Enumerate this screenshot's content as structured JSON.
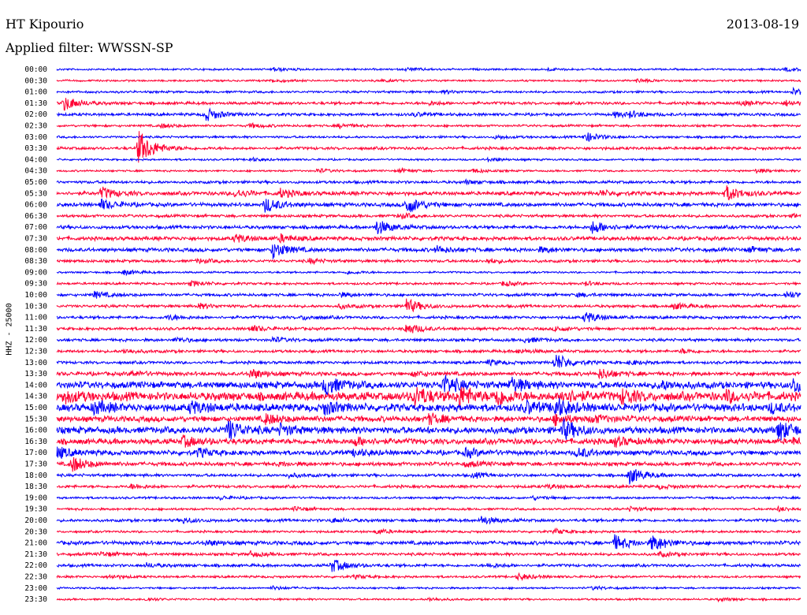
{
  "header": {
    "station": "HT Kipourio",
    "date": "2013-08-19",
    "filter": "Applied filter: WWSSN-SP"
  },
  "chart_data": {
    "type": "line",
    "title": "HT Kipourio",
    "ylabel": "HHZ - 25000",
    "colors": [
      "#0000ff",
      "#ff0033"
    ],
    "lines": [
      {
        "time": "00:00",
        "noise": 1.0,
        "events": [
          [
            0.29,
            2.5
          ],
          [
            0.47,
            2.0
          ],
          [
            0.66,
            1.5
          ],
          [
            0.98,
            2.0
          ]
        ]
      },
      {
        "time": "00:30",
        "noise": 1.0,
        "events": [
          [
            0.29,
            2.0
          ],
          [
            0.43,
            1.8
          ],
          [
            0.78,
            2.2
          ]
        ]
      },
      {
        "time": "01:00",
        "noise": 1.2,
        "events": [
          [
            0.52,
            1.8
          ],
          [
            0.99,
            4.0
          ]
        ]
      },
      {
        "time": "01:30",
        "noise": 1.5,
        "events": [
          [
            0.01,
            9.0
          ],
          [
            0.5,
            2.0
          ],
          [
            0.92,
            2.5
          ],
          [
            0.98,
            3.0
          ]
        ]
      },
      {
        "time": "02:00",
        "noise": 1.5,
        "events": [
          [
            0.2,
            8.0
          ],
          [
            0.48,
            2.0
          ],
          [
            0.75,
            3.0
          ],
          [
            0.77,
            3.0
          ]
        ]
      },
      {
        "time": "02:30",
        "noise": 1.2,
        "events": [
          [
            0.14,
            2.5
          ],
          [
            0.26,
            2.5
          ],
          [
            0.38,
            2.5
          ]
        ]
      },
      {
        "time": "03:00",
        "noise": 1.2,
        "events": [
          [
            0.71,
            6.0
          ],
          [
            0.59,
            2.0
          ]
        ]
      },
      {
        "time": "03:30",
        "noise": 1.5,
        "events": [
          [
            0.11,
            22.0
          ]
        ]
      },
      {
        "time": "04:00",
        "noise": 1.0,
        "events": [
          [
            0.26,
            2.0
          ],
          [
            0.58,
            2.0
          ]
        ]
      },
      {
        "time": "04:30",
        "noise": 1.0,
        "events": [
          [
            0.35,
            2.5
          ],
          [
            0.46,
            2.5
          ],
          [
            0.56,
            2.5
          ],
          [
            0.94,
            2.5
          ]
        ]
      },
      {
        "time": "05:00",
        "noise": 1.5,
        "events": [
          [
            0.55,
            2.0
          ]
        ]
      },
      {
        "time": "05:30",
        "noise": 2.0,
        "events": [
          [
            0.06,
            7.0
          ],
          [
            0.24,
            5.0
          ],
          [
            0.3,
            5.0
          ],
          [
            0.9,
            9.0
          ],
          [
            0.73,
            3.0
          ]
        ]
      },
      {
        "time": "06:00",
        "noise": 2.0,
        "events": [
          [
            0.06,
            6.0
          ],
          [
            0.28,
            9.0
          ],
          [
            0.47,
            11.0
          ]
        ]
      },
      {
        "time": "06:30",
        "noise": 1.5,
        "events": [
          [
            0.46,
            3.0
          ],
          [
            0.99,
            2.0
          ]
        ]
      },
      {
        "time": "07:00",
        "noise": 1.8,
        "events": [
          [
            0.43,
            9.0
          ],
          [
            0.72,
            8.0
          ]
        ]
      },
      {
        "time": "07:30",
        "noise": 2.0,
        "events": [
          [
            0.24,
            5.0
          ],
          [
            0.3,
            4.0
          ]
        ]
      },
      {
        "time": "08:00",
        "noise": 2.0,
        "events": [
          [
            0.29,
            10.0
          ],
          [
            0.51,
            4.0
          ],
          [
            0.65,
            3.0
          ],
          [
            0.93,
            3.0
          ]
        ]
      },
      {
        "time": "08:30",
        "noise": 1.5,
        "events": [
          [
            0.19,
            2.5
          ],
          [
            0.34,
            2.5
          ],
          [
            0.58,
            2.5
          ]
        ]
      },
      {
        "time": "09:00",
        "noise": 1.0,
        "events": [
          [
            0.09,
            3.0
          ],
          [
            0.39,
            2.0
          ]
        ]
      },
      {
        "time": "09:30",
        "noise": 1.2,
        "events": [
          [
            0.18,
            3.5
          ],
          [
            0.6,
            3.0
          ],
          [
            0.71,
            2.5
          ]
        ]
      },
      {
        "time": "10:00",
        "noise": 1.5,
        "events": [
          [
            0.05,
            4.0
          ],
          [
            0.38,
            2.5
          ],
          [
            0.7,
            2.0
          ],
          [
            0.98,
            4.0
          ]
        ]
      },
      {
        "time": "10:30",
        "noise": 1.5,
        "events": [
          [
            0.47,
            9.0
          ],
          [
            0.19,
            3.0
          ],
          [
            0.38,
            2.5
          ],
          [
            0.83,
            3.5
          ]
        ]
      },
      {
        "time": "11:00",
        "noise": 1.5,
        "events": [
          [
            0.71,
            7.0
          ],
          [
            0.15,
            3.0
          ],
          [
            0.33,
            2.5
          ]
        ]
      },
      {
        "time": "11:30",
        "noise": 1.5,
        "events": [
          [
            0.26,
            4.0
          ],
          [
            0.47,
            7.0
          ],
          [
            0.67,
            3.0
          ]
        ]
      },
      {
        "time": "12:00",
        "noise": 1.5,
        "events": [
          [
            0.16,
            3.0
          ],
          [
            0.29,
            3.0
          ],
          [
            0.63,
            3.0
          ]
        ]
      },
      {
        "time": "12:30",
        "noise": 1.5,
        "events": [
          [
            0.09,
            2.5
          ],
          [
            0.62,
            2.5
          ],
          [
            0.84,
            2.5
          ]
        ]
      },
      {
        "time": "13:00",
        "noise": 1.5,
        "events": [
          [
            0.67,
            11.0
          ],
          [
            0.58,
            3.0
          ],
          [
            0.77,
            2.5
          ]
        ]
      },
      {
        "time": "13:30",
        "noise": 2.0,
        "events": [
          [
            0.26,
            6.0
          ],
          [
            0.73,
            6.0
          ],
          [
            0.1,
            3.0
          ],
          [
            0.48,
            3.0
          ]
        ]
      },
      {
        "time": "14:00",
        "noise": 3.5,
        "events": [
          [
            0.36,
            12.0
          ],
          [
            0.52,
            11.0
          ],
          [
            0.61,
            9.0
          ],
          [
            0.81,
            5.0
          ],
          [
            0.99,
            9.0
          ]
        ]
      },
      {
        "time": "14:30",
        "noise": 4.5,
        "events": [
          [
            0.01,
            7.0
          ],
          [
            0.48,
            12.0
          ],
          [
            0.54,
            12.0
          ],
          [
            0.59,
            11.0
          ],
          [
            0.68,
            8.0
          ],
          [
            0.76,
            8.0
          ],
          [
            0.9,
            6.0
          ]
        ]
      },
      {
        "time": "15:00",
        "noise": 4.0,
        "events": [
          [
            0.05,
            7.0
          ],
          [
            0.18,
            7.0
          ],
          [
            0.36,
            7.0
          ],
          [
            0.67,
            11.0
          ],
          [
            0.63,
            7.0
          ],
          [
            0.96,
            5.0
          ]
        ]
      },
      {
        "time": "15:30",
        "noise": 3.0,
        "events": [
          [
            0.28,
            6.0
          ],
          [
            0.5,
            6.0
          ],
          [
            0.67,
            6.0
          ],
          [
            0.72,
            4.0
          ]
        ]
      },
      {
        "time": "16:00",
        "noise": 3.5,
        "events": [
          [
            0.23,
            12.0
          ],
          [
            0.3,
            6.0
          ],
          [
            0.68,
            12.0
          ],
          [
            0.97,
            12.0
          ]
        ]
      },
      {
        "time": "16:30",
        "noise": 3.0,
        "events": [
          [
            0.17,
            6.0
          ],
          [
            0.4,
            5.0
          ],
          [
            0.75,
            5.0
          ],
          [
            0.99,
            3.0
          ]
        ]
      },
      {
        "time": "17:00",
        "noise": 2.5,
        "events": [
          [
            0.0,
            7.0
          ],
          [
            0.19,
            5.0
          ],
          [
            0.55,
            5.0
          ],
          [
            0.7,
            6.0
          ],
          [
            0.4,
            4.0
          ]
        ]
      },
      {
        "time": "17:30",
        "noise": 2.0,
        "events": [
          [
            0.02,
            10.0
          ],
          [
            0.55,
            3.0
          ],
          [
            0.3,
            2.0
          ]
        ]
      },
      {
        "time": "18:00",
        "noise": 1.5,
        "events": [
          [
            0.77,
            10.0
          ],
          [
            0.56,
            3.0
          ],
          [
            0.31,
            2.5
          ]
        ]
      },
      {
        "time": "18:30",
        "noise": 1.5,
        "events": [
          [
            0.1,
            2.5
          ],
          [
            0.66,
            2.5
          ],
          [
            0.81,
            2.0
          ]
        ]
      },
      {
        "time": "19:00",
        "noise": 1.2,
        "events": [
          [
            0.22,
            2.0
          ],
          [
            0.64,
            2.0
          ]
        ]
      },
      {
        "time": "19:30",
        "noise": 1.2,
        "events": [
          [
            0.32,
            2.5
          ],
          [
            0.77,
            2.5
          ],
          [
            0.97,
            2.5
          ]
        ]
      },
      {
        "time": "20:00",
        "noise": 1.5,
        "events": [
          [
            0.57,
            5.0
          ],
          [
            0.17,
            3.0
          ],
          [
            0.37,
            2.5
          ]
        ]
      },
      {
        "time": "20:30",
        "noise": 1.2,
        "events": [
          [
            0.43,
            3.0
          ],
          [
            0.67,
            3.0
          ]
        ]
      },
      {
        "time": "21:00",
        "noise": 2.0,
        "events": [
          [
            0.75,
            9.0
          ],
          [
            0.8,
            10.0
          ],
          [
            0.2,
            3.0
          ]
        ]
      },
      {
        "time": "21:30",
        "noise": 1.5,
        "events": [
          [
            0.06,
            2.5
          ],
          [
            0.26,
            3.0
          ],
          [
            0.81,
            2.5
          ]
        ]
      },
      {
        "time": "22:00",
        "noise": 1.5,
        "events": [
          [
            0.37,
            8.0
          ],
          [
            0.12,
            2.5
          ],
          [
            0.58,
            2.5
          ]
        ]
      },
      {
        "time": "22:30",
        "noise": 1.2,
        "events": [
          [
            0.62,
            4.0
          ],
          [
            0.07,
            2.5
          ],
          [
            0.4,
            2.0
          ]
        ]
      },
      {
        "time": "23:00",
        "noise": 1.0,
        "events": [
          [
            0.29,
            2.0
          ],
          [
            0.72,
            2.0
          ]
        ]
      },
      {
        "time": "23:30",
        "noise": 1.0,
        "events": [
          [
            0.12,
            2.0
          ],
          [
            0.5,
            2.0
          ],
          [
            0.89,
            2.0
          ]
        ]
      }
    ]
  }
}
